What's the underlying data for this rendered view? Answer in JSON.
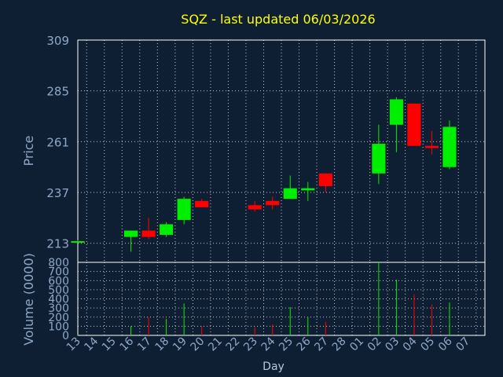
{
  "chart_data": {
    "type": "candlestick",
    "title": "SQZ - last updated 06/03/2026",
    "ylabel": "Price",
    "volume_label": "Volume (0000)",
    "xlabel": "Day",
    "price_ticks": [
      "213",
      "237",
      "261",
      "285",
      "309"
    ],
    "price_ylim": [
      204,
      309
    ],
    "volume_ticks": [
      "0",
      "100",
      "200",
      "300",
      "400",
      "500",
      "600",
      "700",
      "800"
    ],
    "volume_ylim": [
      0,
      800
    ],
    "x_labels": [
      "13",
      "14",
      "15",
      "16",
      "17",
      "18",
      "19",
      "20",
      "21",
      "22",
      "23",
      "24",
      "25",
      "26",
      "27",
      "28",
      "01",
      "02",
      "03",
      "04",
      "05",
      "06",
      "07"
    ],
    "grid": true,
    "colors": {
      "up": "#00ee00",
      "down": "#ff0000",
      "background": "#0f1f33",
      "grid": "#c8c8c8",
      "title": "#ffff00",
      "text": "#8fa8c8"
    },
    "candles": [
      {
        "day": "13",
        "open": 214,
        "high": 214.5,
        "low": 213.5,
        "close": 214,
        "volume": 5
      },
      {
        "day": "16",
        "open": 216,
        "high": 219,
        "low": 209,
        "close": 219,
        "volume": 100
      },
      {
        "day": "17",
        "open": 219,
        "high": 225,
        "low": 215,
        "close": 216,
        "volume": 200
      },
      {
        "day": "18",
        "open": 217,
        "high": 223,
        "low": 216,
        "close": 222,
        "volume": 180
      },
      {
        "day": "19",
        "open": 224,
        "high": 235,
        "low": 222,
        "close": 234,
        "volume": 350
      },
      {
        "day": "20",
        "open": 233,
        "high": 234,
        "low": 230,
        "close": 230,
        "volume": 100
      },
      {
        "day": "23",
        "open": 231,
        "high": 233,
        "low": 228,
        "close": 229,
        "volume": 90
      },
      {
        "day": "24",
        "open": 233,
        "high": 235,
        "low": 229,
        "close": 231,
        "volume": 120
      },
      {
        "day": "25",
        "open": 234,
        "high": 245,
        "low": 234,
        "close": 239,
        "volume": 310
      },
      {
        "day": "26",
        "open": 238,
        "high": 242,
        "low": 233,
        "close": 239,
        "volume": 200
      },
      {
        "day": "27",
        "open": 246,
        "high": 246,
        "low": 237,
        "close": 240,
        "volume": 150
      },
      {
        "day": "02",
        "open": 246,
        "high": 269,
        "low": 241,
        "close": 260,
        "volume": 800
      },
      {
        "day": "03",
        "open": 269,
        "high": 282,
        "low": 256,
        "close": 281,
        "volume": 610
      },
      {
        "day": "04",
        "open": 279,
        "high": 279,
        "low": 259,
        "close": 259,
        "volume": 450
      },
      {
        "day": "05",
        "open": 259,
        "high": 266,
        "low": 255,
        "close": 258,
        "volume": 340
      },
      {
        "day": "06",
        "open": 249,
        "high": 271,
        "low": 248,
        "close": 268,
        "volume": 360
      }
    ]
  }
}
